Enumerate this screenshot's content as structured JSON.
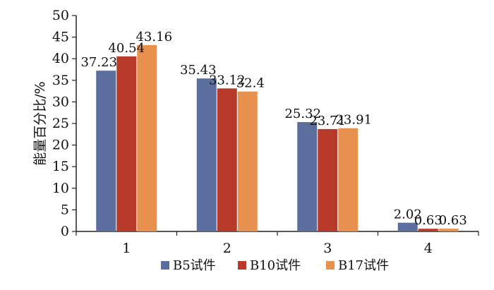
{
  "chart_data": {
    "type": "bar",
    "categories": [
      "1",
      "2",
      "3",
      "4"
    ],
    "series": [
      {
        "name": "B5试件",
        "color": "#5B6E9E",
        "values": [
          37.23,
          35.43,
          25.32,
          2.02
        ],
        "labels": [
          "37.23",
          "35.43",
          "25.32",
          "2.02"
        ]
      },
      {
        "name": "B10试件",
        "color": "#B83A2B",
        "values": [
          40.54,
          33.12,
          23.71,
          0.63
        ],
        "labels": [
          "40.54",
          "33.12",
          "23.71",
          "0.63"
        ]
      },
      {
        "name": "B17试件",
        "color": "#E8914F",
        "values": [
          43.16,
          32.4,
          23.91,
          0.63
        ],
        "labels": [
          "43.16",
          "32.4",
          "23.91",
          "0.63"
        ]
      }
    ],
    "ylabel": "能量百分比/%",
    "xlabel": "",
    "ylim": [
      0,
      50
    ],
    "yticks": [
      "0",
      "5",
      "10",
      "15",
      "20",
      "25",
      "30",
      "35",
      "40",
      "45",
      "50"
    ],
    "grid": false,
    "legend_position": "bottom"
  }
}
